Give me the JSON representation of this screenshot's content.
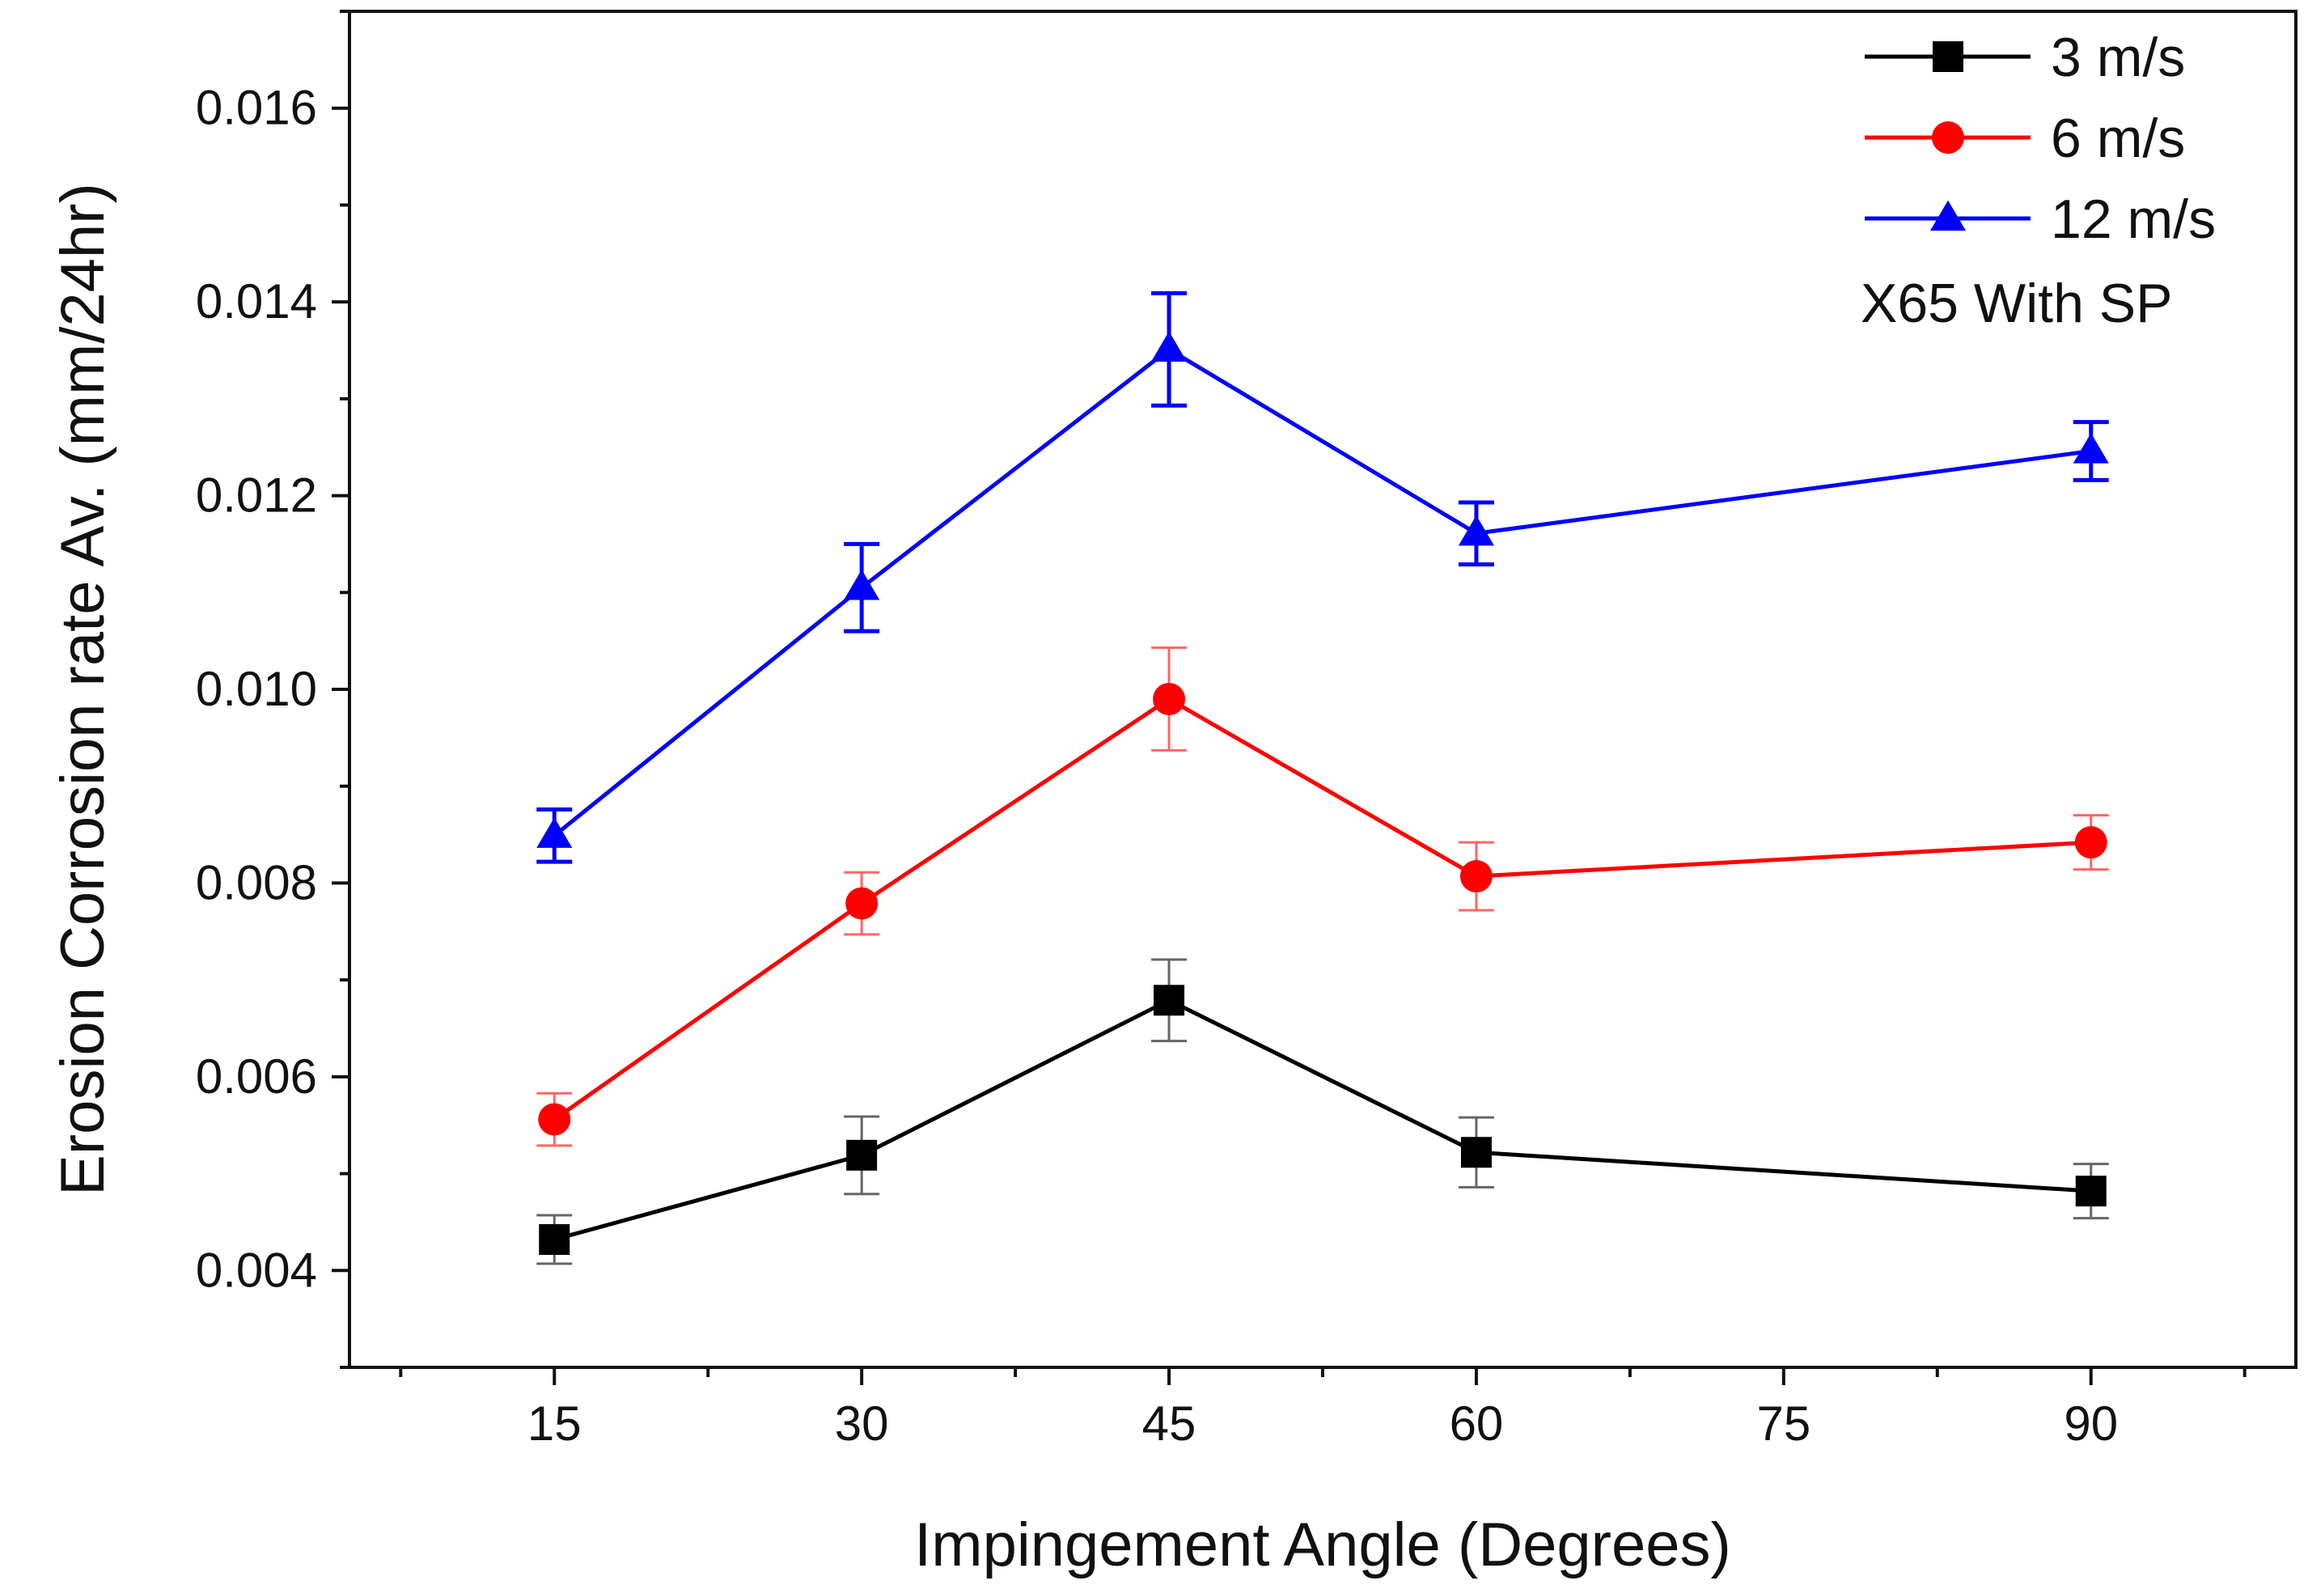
{
  "chart_data": {
    "type": "line",
    "title": "",
    "xlabel": "Impingement Angle (Degrees)",
    "ylabel": "Erosion Corrosion rate Av. (mm/24hr)",
    "xlim": [
      5,
      100
    ],
    "ylim": [
      0.003,
      0.017
    ],
    "x_ticks": [
      15,
      30,
      45,
      60,
      75,
      90
    ],
    "x_minor_ticks": [
      7.5,
      22.5,
      37.5,
      52.5,
      67.5,
      82.5,
      97.5
    ],
    "x_tick_labels": [
      "15",
      "30",
      "45",
      "60",
      "75",
      "90"
    ],
    "y_ticks": [
      0.004,
      0.006,
      0.008,
      0.01,
      0.012,
      0.014,
      0.016
    ],
    "y_minor_ticks": [
      0.003,
      0.005,
      0.007,
      0.009,
      0.011,
      0.013,
      0.015,
      0.017
    ],
    "y_tick_labels": [
      "0.004",
      "0.006",
      "0.008",
      "0.010",
      "0.012",
      "0.014",
      "0.016"
    ],
    "legend_position": "top-right",
    "annotation": "X65 With SP",
    "x": [
      15,
      30,
      45,
      60,
      90
    ],
    "series": [
      {
        "name": "3 m/s",
        "color": "#000000",
        "marker": "square",
        "values": [
          0.00432,
          0.00519,
          0.00679,
          0.00522,
          0.00482
        ],
        "errors": [
          0.00025,
          0.0004,
          0.00042,
          0.00036,
          0.00028
        ]
      },
      {
        "name": "6 m/s",
        "color": "#ff0000",
        "marker": "circle",
        "values": [
          0.00556,
          0.00779,
          0.0099,
          0.00807,
          0.00842
        ],
        "errors": [
          0.00027,
          0.00032,
          0.00053,
          0.00035,
          0.00028
        ]
      },
      {
        "name": "12 m/s",
        "color": "#0000ff",
        "marker": "triangle",
        "values": [
          0.00849,
          0.01105,
          0.01351,
          0.01161,
          0.01246
        ],
        "errors": [
          0.00027,
          0.00045,
          0.00058,
          0.00032,
          0.0003
        ]
      }
    ]
  }
}
